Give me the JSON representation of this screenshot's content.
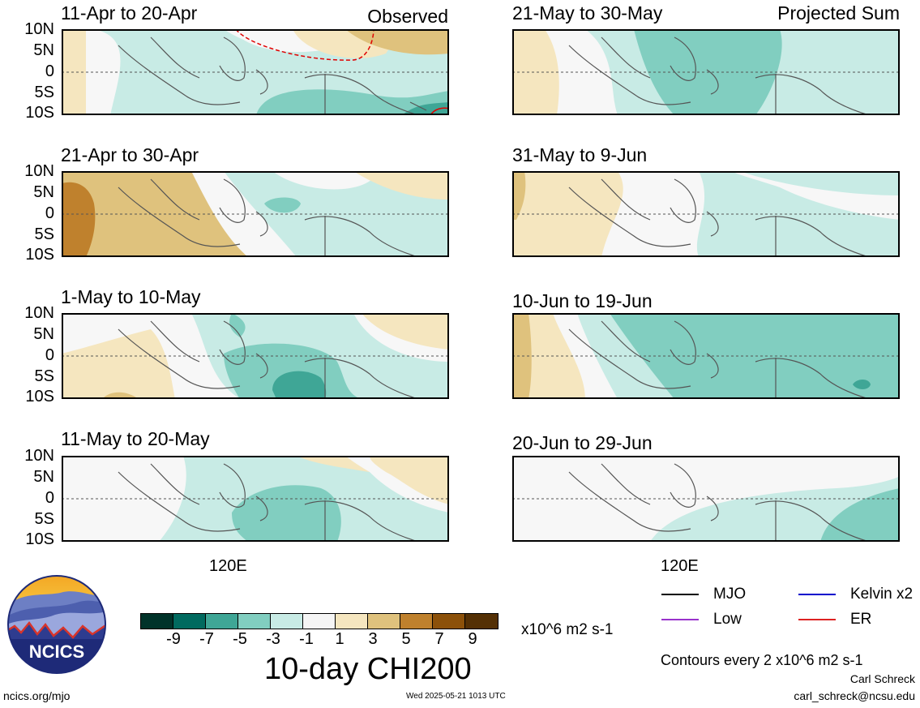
{
  "header": {
    "observed_label": "Observed",
    "projected_label": "Projected Sum"
  },
  "lat_ticks": [
    "10N",
    "5N",
    "0",
    "5S",
    "10S"
  ],
  "lon_label": "120E",
  "panels_left": [
    {
      "title": "11-Apr to 20-Apr"
    },
    {
      "title": "21-Apr to 30-Apr"
    },
    {
      "title": "1-May to 10-May"
    },
    {
      "title": "11-May to 20-May"
    }
  ],
  "panels_right": [
    {
      "title": "21-May to 30-May"
    },
    {
      "title": "31-May to 9-Jun"
    },
    {
      "title": "10-Jun to 19-Jun"
    },
    {
      "title": "20-Jun to 29-Jun"
    }
  ],
  "colorbar": {
    "colors": [
      "#01332a",
      "#016a5f",
      "#3fa696",
      "#81cec0",
      "#c8ebe5",
      "#f5f5f5",
      "#f5e6bf",
      "#dfc27d",
      "#bf812d",
      "#8c510a",
      "#543005"
    ],
    "tick_labels": [
      "-9",
      "-7",
      "-5",
      "-3",
      "-1",
      "1",
      "3",
      "5",
      "7",
      "9"
    ],
    "units": "x10^6 m2 s-1"
  },
  "title": "10-day CHI200",
  "legend": [
    {
      "label": "MJO",
      "color": "#000000"
    },
    {
      "label": "Kelvin x2",
      "color": "#0000cc"
    },
    {
      "label": "Low",
      "color": "#9932cc"
    },
    {
      "label": "ER",
      "color": "#dd2222"
    }
  ],
  "contour_note": "Contours every 2 x10^6 m2 s-1",
  "logo": {
    "text": "NCICS"
  },
  "footer": {
    "site": "ncics.org/mjo",
    "timestamp": "Wed 2025-05-21 1013 UTC",
    "author": "Carl Schreck",
    "email": "carl_schreck@ncsu.edu"
  }
}
